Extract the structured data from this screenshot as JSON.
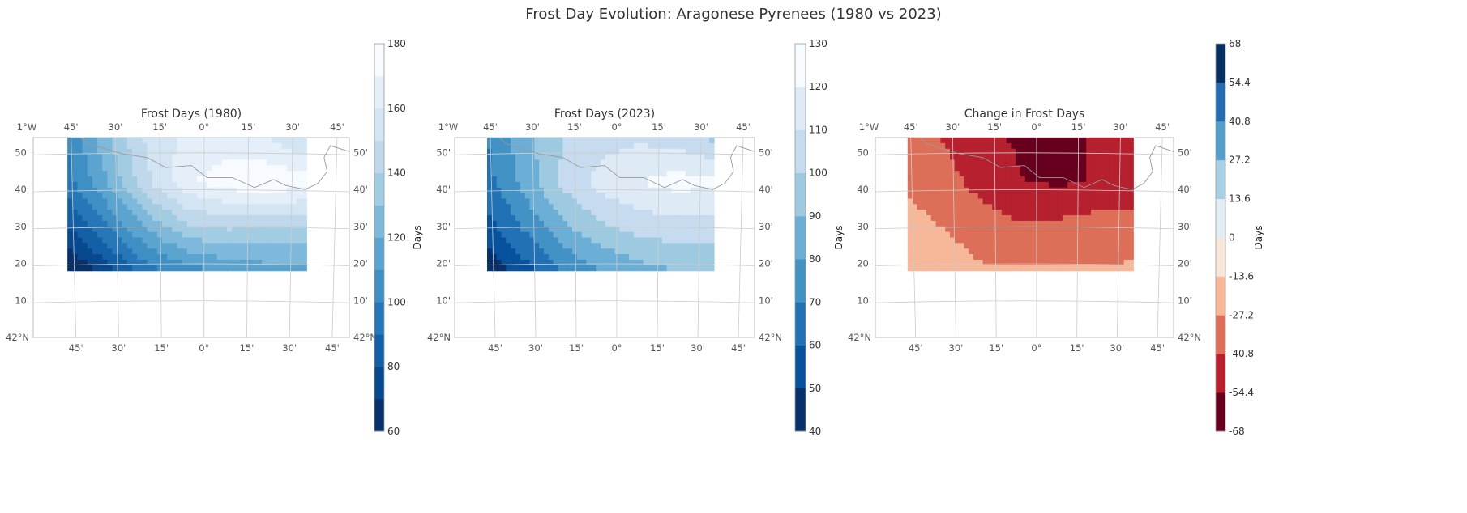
{
  "title": "Frost Day Evolution: Aragonese Pyrenees (1980 vs 2023)",
  "colorbar_label": "Days",
  "panels": [
    {
      "title": "Frost Days (1980)",
      "cmap": "blues",
      "levels": [
        60,
        70,
        80,
        90,
        100,
        110,
        120,
        130,
        140,
        150,
        160,
        170,
        180
      ],
      "cbar_ticks": [
        "60",
        "80",
        "100",
        "120",
        "140",
        "160",
        "180"
      ],
      "cbar_tick_values": [
        60,
        80,
        100,
        120,
        140,
        160,
        180
      ]
    },
    {
      "title": "Frost Days (2023)",
      "cmap": "blues",
      "levels": [
        40,
        50,
        60,
        70,
        80,
        90,
        100,
        110,
        120,
        130
      ],
      "cbar_ticks": [
        "40",
        "50",
        "60",
        "70",
        "80",
        "90",
        "100",
        "110",
        "120",
        "130"
      ],
      "cbar_tick_values": [
        40,
        50,
        60,
        70,
        80,
        90,
        100,
        110,
        120,
        130
      ]
    },
    {
      "title": "Change in Frost Days",
      "cmap": "rdbu",
      "levels": [
        -68,
        -54.4,
        -40.8,
        -27.2,
        -13.6,
        0,
        13.6,
        27.2,
        40.8,
        54.4,
        68
      ],
      "cbar_ticks": [
        "-68",
        "-54.4",
        "-40.8",
        "-27.2",
        "-13.6",
        "0",
        "13.6",
        "27.2",
        "40.8",
        "54.4",
        "68"
      ],
      "cbar_tick_values": [
        -68,
        -54.4,
        -40.8,
        -27.2,
        -13.6,
        0,
        13.6,
        27.2,
        40.8,
        54.4,
        68
      ]
    }
  ],
  "map_axes": {
    "top_lon_labels": [
      "1°W",
      "45'",
      "30'",
      "15'",
      "0°",
      "15'",
      "30'",
      "45'"
    ],
    "bottom_lon_labels": [
      "45'",
      "30'",
      "15'",
      "0°",
      "15'",
      "30'",
      "45'"
    ],
    "lat_labels": [
      "50'",
      "40'",
      "30'",
      "20'",
      "10'",
      "42°N"
    ],
    "extent": {
      "lon": [
        -1.0,
        0.85
      ],
      "lat": [
        42.0,
        42.9
      ]
    }
  },
  "chart_data": [
    {
      "type": "heatmap",
      "title": "Frost Days (1980)",
      "x": [
        -0.7,
        -0.5,
        -0.3,
        -0.1,
        0.1,
        0.3,
        0.5
      ],
      "y": [
        42.3,
        42.5,
        42.7,
        42.9
      ],
      "z": [
        [
          58,
          76,
          96,
          106,
          112,
          116,
          118
        ],
        [
          78,
          100,
          122,
          138,
          142,
          140,
          138
        ],
        [
          96,
          120,
          148,
          168,
          176,
          178,
          176
        ],
        [
          100,
          128,
          152,
          162,
          164,
          160,
          148
        ]
      ],
      "colorbar": {
        "label": "Days",
        "range": [
          60,
          180
        ]
      },
      "xlim": [
        -1.0,
        0.85
      ],
      "ylim": [
        42.0,
        42.9
      ]
    },
    {
      "type": "heatmap",
      "title": "Frost Days (2023)",
      "x": [
        -0.7,
        -0.5,
        -0.3,
        -0.1,
        0.1,
        0.3,
        0.5
      ],
      "y": [
        42.3,
        42.5,
        42.7,
        42.9
      ],
      "z": [
        [
          42,
          56,
          70,
          80,
          86,
          90,
          92
        ],
        [
          56,
          72,
          88,
          98,
          104,
          106,
          106
        ],
        [
          66,
          84,
          102,
          114,
          120,
          124,
          122
        ],
        [
          70,
          86,
          100,
          106,
          108,
          106,
          98
        ]
      ],
      "colorbar": {
        "label": "Days",
        "range": [
          40,
          130
        ]
      },
      "xlim": [
        -1.0,
        0.85
      ],
      "ylim": [
        42.0,
        42.9
      ]
    },
    {
      "type": "heatmap",
      "title": "Change in Frost Days",
      "x": [
        -0.7,
        -0.5,
        -0.3,
        -0.1,
        0.1,
        0.3,
        0.5
      ],
      "y": [
        42.3,
        42.5,
        42.7,
        42.9
      ],
      "z": [
        [
          -16,
          -20,
          -26,
          -26,
          -26,
          -26,
          -26
        ],
        [
          -22,
          -28,
          -34,
          -40,
          -38,
          -34,
          -32
        ],
        [
          -30,
          -36,
          -46,
          -54,
          -56,
          -54,
          -54
        ],
        [
          -30,
          -42,
          -52,
          -56,
          -56,
          -54,
          -50
        ]
      ],
      "colorbar": {
        "label": "Days",
        "range": [
          -68,
          68
        ]
      },
      "xlim": [
        -1.0,
        0.85
      ],
      "ylim": [
        42.0,
        42.9
      ]
    }
  ]
}
